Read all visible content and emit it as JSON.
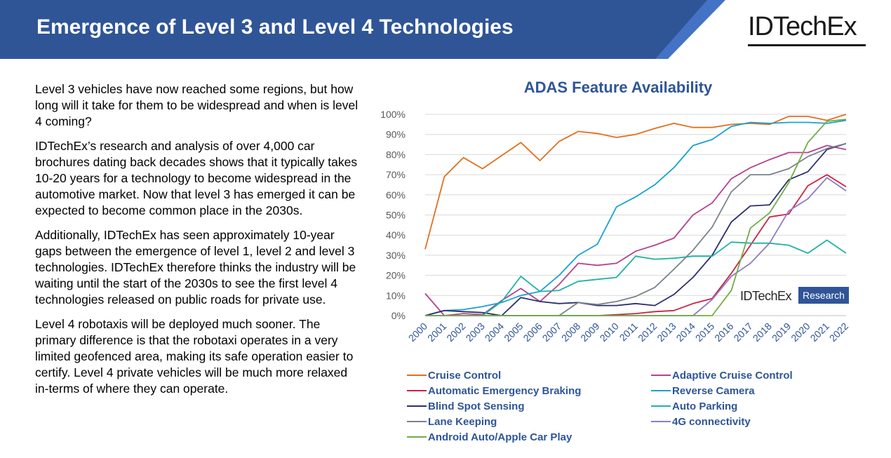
{
  "header": {
    "title": "Emergence of Level 3 and Level 4 Technologies",
    "logo": "IDTechEx",
    "band_color": "#2f5597",
    "accent_color": "#4472c4"
  },
  "body": {
    "paragraphs": [
      "Level 3 vehicles have now reached some regions, but how long will it take for them to be widespread and when is level 4 coming?",
      "IDTechEx’s research and analysis of over 4,000 car brochures dating back decades shows that it typically takes 10-20 years for a technology to become widespread in the automotive market. Now that level 3 has emerged it can be expected to become common place in the 2030s.",
      "Additionally, IDTechEx has seen approximately 10-year gaps between the emergence of level 1, level 2 and level 3 technologies. IDTechEx therefore thinks the industry will be waiting until the start of the 2030s to see the first level 4 technologies released on public roads for private use.",
      "Level 4 robotaxis will be deployed much sooner. The primary difference is that the robotaxi operates in a very limited geofenced area, making its safe operation easier to certify. Level 4 private vehicles will be much more relaxed in-terms of where they can operate."
    ]
  },
  "watermark": {
    "brand": "IDTechEx",
    "tag": "Research"
  },
  "chart_data": {
    "type": "line",
    "title": "ADAS Feature Availability",
    "xlabel": "",
    "ylabel": "",
    "ylim": [
      0,
      100
    ],
    "y_ticks": [
      "0%",
      "10%",
      "20%",
      "30%",
      "40%",
      "50%",
      "60%",
      "70%",
      "80%",
      "90%",
      "100%"
    ],
    "grid": true,
    "legend_position": "bottom",
    "categories": [
      "2000",
      "2001",
      "2002",
      "2003",
      "2004",
      "2005",
      "2006",
      "2007",
      "2008",
      "2009",
      "2010",
      "2011",
      "2012",
      "2013",
      "2014",
      "2015",
      "2016",
      "2017",
      "2018",
      "2019",
      "2020",
      "2021",
      "2022"
    ],
    "series": [
      {
        "name": "Cruise Control",
        "color": "#e07020",
        "values": [
          33,
          69,
          78.5,
          73,
          79.5,
          86,
          77,
          86.5,
          91.5,
          90.5,
          88.5,
          90,
          93,
          95.5,
          93.5,
          93.5,
          95,
          95.5,
          95,
          99,
          99,
          97,
          100
        ]
      },
      {
        "name": "Adaptive Cruise Control",
        "color": "#b5428f",
        "values": [
          11,
          0,
          1,
          0.5,
          7.5,
          13.5,
          7,
          15.5,
          26,
          25,
          26,
          32,
          35,
          38.5,
          50,
          56,
          68,
          73.5,
          77.5,
          81,
          81,
          84.5,
          82.5
        ]
      },
      {
        "name": "Automatic Emergency Braking",
        "color": "#cc2144",
        "values": [
          0,
          0,
          0,
          0,
          0,
          0,
          0,
          0,
          0,
          0,
          0.5,
          1,
          2,
          2.5,
          6,
          8.5,
          21,
          35,
          49,
          50.5,
          64.5,
          70,
          64
        ]
      },
      {
        "name": "Reverse Camera",
        "color": "#17a2cf",
        "values": [
          0,
          2.5,
          3,
          4.5,
          6.5,
          10,
          12,
          20,
          30,
          35.5,
          54,
          59,
          65,
          73.5,
          84.5,
          87.5,
          94,
          96,
          95.5,
          96,
          96,
          95.5,
          97
        ]
      },
      {
        "name": "Blind Spot Sensing",
        "color": "#2e2f6e",
        "values": [
          0,
          2.5,
          2,
          1.5,
          0,
          9,
          7,
          6,
          6.5,
          5,
          5,
          6,
          5,
          10.5,
          19,
          30,
          46.5,
          54.5,
          55,
          67.5,
          71.5,
          82.5,
          85.5
        ]
      },
      {
        "name": "Auto Parking",
        "color": "#1fb2a6",
        "values": [
          0,
          0,
          0,
          0,
          7,
          19.5,
          12,
          12.5,
          17,
          18,
          19,
          29.5,
          28,
          28.5,
          29.5,
          29.5,
          36.5,
          36,
          36,
          35,
          31,
          37.5,
          31
        ]
      },
      {
        "name": "Lane Keeping",
        "color": "#7a828c",
        "values": [
          0,
          0,
          0,
          0,
          0,
          0,
          0,
          0,
          6.5,
          5.5,
          7,
          9.5,
          14,
          23,
          32.5,
          44,
          61.5,
          70,
          70,
          73,
          79,
          83,
          85.5
        ]
      },
      {
        "name": "4G connectivity",
        "color": "#8e7cc3",
        "values": [
          0,
          0,
          0,
          0,
          0,
          0,
          0,
          0,
          0,
          0,
          0,
          0,
          0,
          0,
          0,
          8,
          19.5,
          26,
          36,
          52,
          58,
          68.5,
          62
        ]
      },
      {
        "name": "Android Auto/Apple Car Play",
        "color": "#70ad47",
        "values": [
          0,
          0,
          0,
          0,
          0,
          0,
          0,
          0,
          0,
          0,
          0,
          0,
          0,
          0,
          0,
          0,
          12.5,
          43.5,
          51,
          66,
          86,
          96.5,
          97.5
        ]
      }
    ]
  }
}
